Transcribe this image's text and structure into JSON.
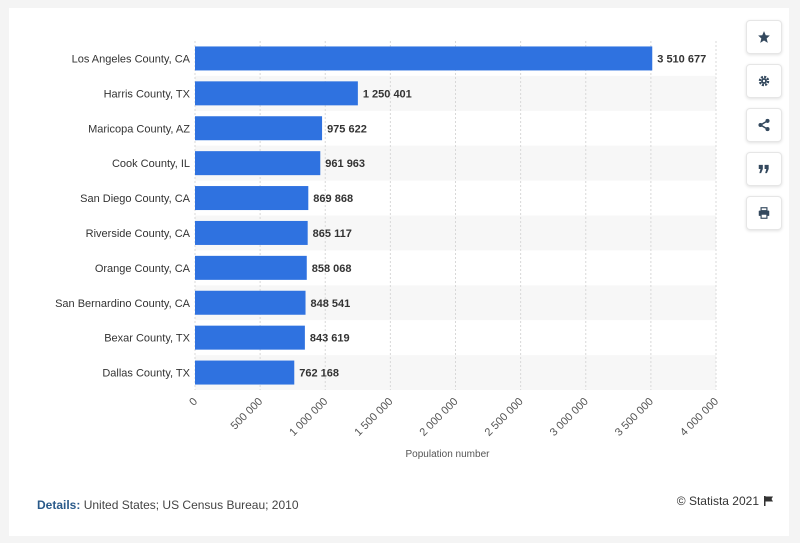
{
  "chart_data": {
    "type": "bar",
    "orientation": "horizontal",
    "categories": [
      "Los Angeles County, CA",
      "Harris County, TX",
      "Maricopa County, AZ",
      "Cook County, IL",
      "San Diego County, CA",
      "Riverside County, CA",
      "Orange County, CA",
      "San Bernardino County, CA",
      "Bexar County, TX",
      "Dallas County, TX"
    ],
    "values": [
      3510677,
      1250401,
      975622,
      961963,
      869868,
      865117,
      858068,
      848541,
      843619,
      762168
    ],
    "value_labels": [
      "3 510 677",
      "1 250 401",
      "975 622",
      "961 963",
      "869 868",
      "865 117",
      "858 068",
      "848 541",
      "843 619",
      "762 168"
    ],
    "xlabel": "Population number",
    "ylabel": "",
    "xlim": [
      0,
      4000000
    ],
    "ticks": [
      0,
      500000,
      1000000,
      1500000,
      2000000,
      2500000,
      3000000,
      3500000,
      4000000
    ],
    "tick_labels": [
      "0",
      "500 000",
      "1 000 000",
      "1 500 000",
      "2 000 000",
      "2 500 000",
      "3 000 000",
      "3 500 000",
      "4 000 000"
    ],
    "bar_color": "#2f72e0",
    "grid": true
  },
  "footer": {
    "details_label": "Details:",
    "details_text": "United States; US Census Bureau; 2010",
    "credit": "© Statista 2021"
  },
  "sidebar": {
    "icons": [
      "star-icon",
      "gear-icon",
      "share-icon",
      "quote-icon",
      "print-icon"
    ]
  }
}
